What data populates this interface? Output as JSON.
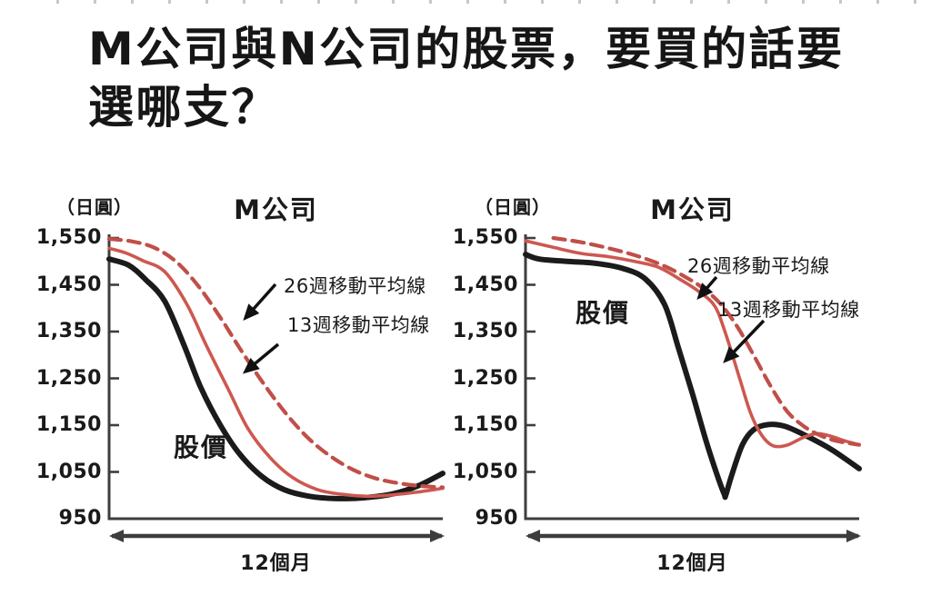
{
  "page": {
    "title_line1": "M公司與N公司的股票，要買的話要",
    "title_line2": "選哪支？"
  },
  "axis": {
    "unit_label": "（日圓）",
    "y_ticks": [
      "1,550",
      "1,450",
      "1,350",
      "1,250",
      "1,150",
      "1,050",
      "950"
    ],
    "x_label": "12個月"
  },
  "annotations": {
    "price": "股價",
    "ma26": "26週移動平均線",
    "ma13": "13週移動平均線"
  },
  "charts": {
    "left": {
      "title": "M公司"
    },
    "right": {
      "title": "M公司"
    }
  },
  "colors": {
    "price_line": "#1b1b1b",
    "ma13_line": "#cd5850",
    "ma26_line": "#c04f48",
    "axis": "#3d3d3d",
    "text": "#1a1a1a"
  },
  "chart_data": [
    {
      "type": "line",
      "title": "M公司",
      "ylabel": "（日圓）",
      "xlabel": "12個月",
      "x_unit": "months",
      "xlim": [
        0,
        12
      ],
      "ylim": [
        950,
        1550
      ],
      "y_tick_step": 100,
      "legend_position": "annotated-arrows",
      "grid": false,
      "series": [
        {
          "name": "股價",
          "style": "price",
          "points": [
            [
              0,
              1505
            ],
            [
              0.7,
              1492
            ],
            [
              1.3,
              1462
            ],
            [
              2,
              1415
            ],
            [
              2.7,
              1320
            ],
            [
              3.3,
              1230
            ],
            [
              4,
              1150
            ],
            [
              4.7,
              1088
            ],
            [
              5.5,
              1040
            ],
            [
              6.3,
              1012
            ],
            [
              7.2,
              998
            ],
            [
              8.2,
              993
            ],
            [
              9.2,
              995
            ],
            [
              10.2,
              1003
            ],
            [
              11.1,
              1020
            ],
            [
              12,
              1047
            ]
          ]
        },
        {
          "name": "13週移動平均線",
          "style": "ma13",
          "points": [
            [
              0,
              1528
            ],
            [
              0.6,
              1518
            ],
            [
              1.2,
              1502
            ],
            [
              2,
              1478
            ],
            [
              2.8,
              1408
            ],
            [
              3.5,
              1320
            ],
            [
              4.3,
              1225
            ],
            [
              5,
              1142
            ],
            [
              5.8,
              1080
            ],
            [
              6.6,
              1038
            ],
            [
              7.5,
              1012
            ],
            [
              8.4,
              1002
            ],
            [
              9.3,
              998
            ],
            [
              10.2,
              1001
            ],
            [
              11.1,
              1007
            ],
            [
              12,
              1015
            ]
          ]
        },
        {
          "name": "26週移動平均線",
          "style": "ma26",
          "points": [
            [
              0,
              1548
            ],
            [
              0.8,
              1543
            ],
            [
              1.6,
              1530
            ],
            [
              2.4,
              1500
            ],
            [
              3.2,
              1448
            ],
            [
              4,
              1380
            ],
            [
              4.8,
              1305
            ],
            [
              5.6,
              1235
            ],
            [
              6.4,
              1172
            ],
            [
              7.2,
              1120
            ],
            [
              8,
              1082
            ],
            [
              8.8,
              1054
            ],
            [
              9.6,
              1036
            ],
            [
              10.4,
              1026
            ],
            [
              11.2,
              1020
            ],
            [
              12,
              1017
            ]
          ]
        }
      ]
    },
    {
      "type": "line",
      "title": "M公司",
      "ylabel": "（日圓）",
      "xlabel": "12個月",
      "x_unit": "months",
      "xlim": [
        0,
        12
      ],
      "ylim": [
        950,
        1550
      ],
      "y_tick_step": 100,
      "legend_position": "annotated-arrows",
      "grid": false,
      "series": [
        {
          "name": "股價",
          "style": "price",
          "points": [
            [
              0,
              1515
            ],
            [
              0.5,
              1505
            ],
            [
              1.5,
              1500
            ],
            [
              2.5,
              1496
            ],
            [
              3.5,
              1485
            ],
            [
              4.3,
              1463
            ],
            [
              5,
              1408
            ],
            [
              5.5,
              1315
            ],
            [
              6,
              1218
            ],
            [
              6.5,
              1115
            ],
            [
              6.9,
              1042
            ],
            [
              7.15,
              1002
            ],
            [
              7.2,
              1000
            ],
            [
              7.4,
              1040
            ],
            [
              7.8,
              1108
            ],
            [
              8.2,
              1140
            ],
            [
              8.7,
              1151
            ],
            [
              9.3,
              1148
            ],
            [
              10,
              1130
            ],
            [
              11,
              1098
            ],
            [
              12,
              1057
            ]
          ]
        },
        {
          "name": "13週移動平均線",
          "style": "ma13",
          "points": [
            [
              0,
              1544
            ],
            [
              1,
              1530
            ],
            [
              2,
              1517
            ],
            [
              3,
              1510
            ],
            [
              4,
              1499
            ],
            [
              4.8,
              1487
            ],
            [
              5.6,
              1460
            ],
            [
              6.2,
              1437
            ],
            [
              6.8,
              1405
            ],
            [
              7.2,
              1345
            ],
            [
              7.7,
              1250
            ],
            [
              8.1,
              1175
            ],
            [
              8.5,
              1128
            ],
            [
              8.9,
              1106
            ],
            [
              9.4,
              1107
            ],
            [
              10,
              1124
            ],
            [
              10.5,
              1132
            ],
            [
              11,
              1126
            ],
            [
              11.5,
              1116
            ],
            [
              12,
              1108
            ]
          ]
        },
        {
          "name": "26週移動平均線",
          "style": "ma26",
          "points": [
            [
              1,
              1550
            ],
            [
              2,
              1541
            ],
            [
              3,
              1528
            ],
            [
              4,
              1512
            ],
            [
              5,
              1490
            ],
            [
              5.8,
              1465
            ],
            [
              6.4,
              1442
            ],
            [
              7,
              1410
            ],
            [
              7.6,
              1362
            ],
            [
              8.2,
              1300
            ],
            [
              8.8,
              1235
            ],
            [
              9.4,
              1180
            ],
            [
              10,
              1148
            ],
            [
              10.6,
              1128
            ],
            [
              11.2,
              1116
            ],
            [
              12,
              1108
            ]
          ]
        }
      ]
    }
  ]
}
